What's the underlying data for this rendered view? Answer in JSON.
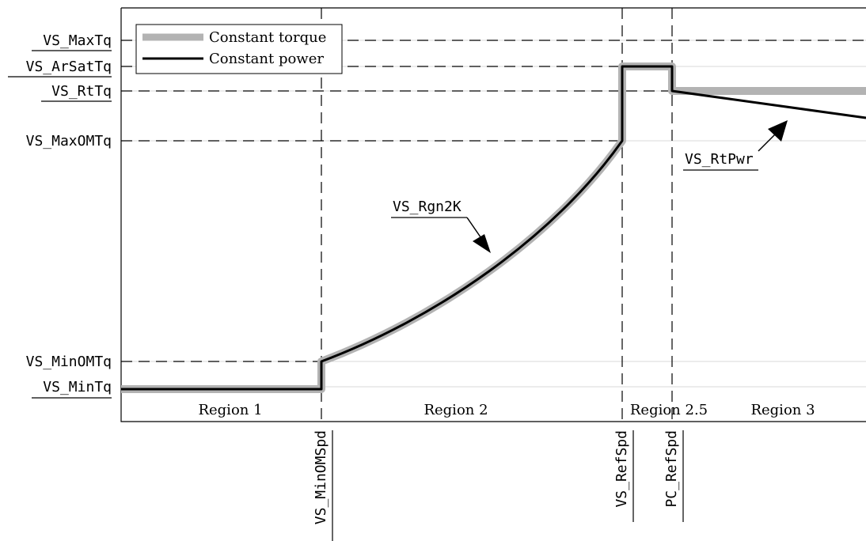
{
  "legend": {
    "constant_torque": "Constant torque",
    "constant_power": "Constant power"
  },
  "y_labels": {
    "max_tq": "VS_MaxTq",
    "ar_sat_tq": "VS_ArSatTq",
    "rt_tq": "VS_RtTq",
    "max_om_tq": "VS_MaxOMTq",
    "min_om_tq": "VS_MinOMTq",
    "min_tq": "VS_MinTq"
  },
  "x_labels": {
    "min_om_spd": "VS_MinOMSpd",
    "ref_spd": "VS_RefSpd",
    "pc_ref_spd": "PC_RefSpd"
  },
  "regions": {
    "region1": "Region 1",
    "region2": "Region 2",
    "region25": "Region 2.5",
    "region3": "Region 3"
  },
  "annotations": {
    "rgn2k": "VS_Rgn2K",
    "rt_pwr": "VS_RtPwr"
  },
  "colors": {
    "constant_torque": "#b3b3b3",
    "constant_power": "#000000",
    "dashed": "#000000",
    "grid": "#d9d9d9"
  }
}
